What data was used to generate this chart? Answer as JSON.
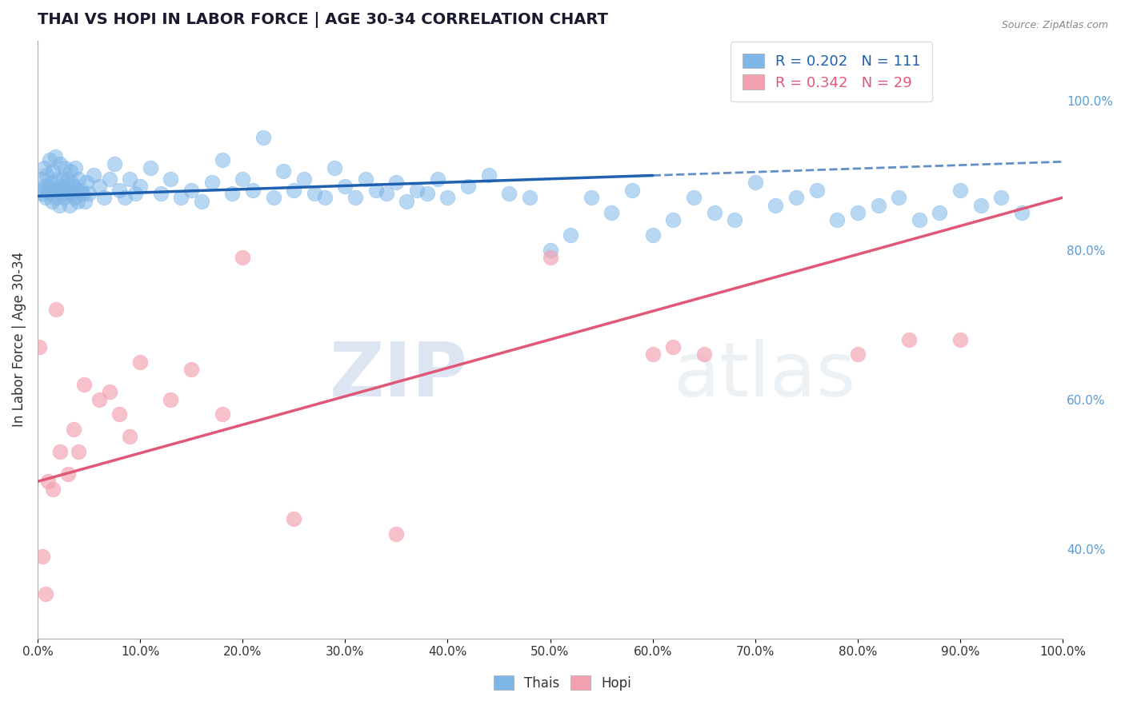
{
  "title": "THAI VS HOPI IN LABOR FORCE | AGE 30-34 CORRELATION CHART",
  "source_text": "Source: ZipAtlas.com",
  "ylabel": "In Labor Force | Age 30-34",
  "xlim": [
    0.0,
    1.0
  ],
  "ylim": [
    0.28,
    1.08
  ],
  "thai_R": 0.202,
  "thai_N": 111,
  "hopi_R": 0.342,
  "hopi_N": 29,
  "thai_color": "#7eb6e8",
  "hopi_color": "#f4a0b0",
  "thai_line_color": "#2060b0",
  "hopi_line_color": "#e05878",
  "background_color": "#ffffff",
  "watermark_zip": "ZIP",
  "watermark_atlas": "atlas",
  "xtick_labels": [
    "0.0%",
    "10.0%",
    "20.0%",
    "30.0%",
    "40.0%",
    "50.0%",
    "60.0%",
    "70.0%",
    "80.0%",
    "90.0%",
    "100.0%"
  ],
  "ytick_labels_right": [
    "40.0%",
    "60.0%",
    "80.0%",
    "100.0%"
  ],
  "ytick_values_right": [
    0.4,
    0.6,
    0.8,
    1.0
  ],
  "thai_scatter_x": [
    0.003,
    0.004,
    0.005,
    0.006,
    0.007,
    0.008,
    0.009,
    0.01,
    0.011,
    0.012,
    0.013,
    0.014,
    0.015,
    0.016,
    0.017,
    0.018,
    0.019,
    0.02,
    0.021,
    0.022,
    0.023,
    0.024,
    0.025,
    0.026,
    0.027,
    0.028,
    0.029,
    0.03,
    0.031,
    0.032,
    0.033,
    0.034,
    0.035,
    0.036,
    0.037,
    0.038,
    0.039,
    0.04,
    0.042,
    0.044,
    0.046,
    0.048,
    0.05,
    0.055,
    0.06,
    0.065,
    0.07,
    0.075,
    0.08,
    0.085,
    0.09,
    0.095,
    0.1,
    0.11,
    0.12,
    0.13,
    0.14,
    0.15,
    0.16,
    0.17,
    0.18,
    0.19,
    0.2,
    0.21,
    0.22,
    0.23,
    0.24,
    0.25,
    0.26,
    0.27,
    0.28,
    0.29,
    0.3,
    0.31,
    0.32,
    0.33,
    0.34,
    0.35,
    0.36,
    0.37,
    0.38,
    0.39,
    0.4,
    0.42,
    0.44,
    0.46,
    0.48,
    0.5,
    0.52,
    0.54,
    0.56,
    0.58,
    0.6,
    0.62,
    0.64,
    0.66,
    0.68,
    0.7,
    0.72,
    0.74,
    0.76,
    0.78,
    0.8,
    0.82,
    0.84,
    0.86,
    0.88,
    0.9,
    0.92,
    0.94,
    0.96
  ],
  "thai_scatter_y": [
    0.88,
    0.895,
    0.875,
    0.91,
    0.885,
    0.87,
    0.9,
    0.885,
    0.875,
    0.92,
    0.89,
    0.865,
    0.905,
    0.88,
    0.925,
    0.87,
    0.895,
    0.88,
    0.86,
    0.915,
    0.875,
    0.895,
    0.885,
    0.87,
    0.91,
    0.88,
    0.895,
    0.875,
    0.86,
    0.905,
    0.89,
    0.875,
    0.885,
    0.87,
    0.91,
    0.88,
    0.865,
    0.895,
    0.88,
    0.875,
    0.865,
    0.89,
    0.875,
    0.9,
    0.885,
    0.87,
    0.895,
    0.915,
    0.88,
    0.87,
    0.895,
    0.875,
    0.885,
    0.91,
    0.875,
    0.895,
    0.87,
    0.88,
    0.865,
    0.89,
    0.92,
    0.875,
    0.895,
    0.88,
    0.95,
    0.87,
    0.905,
    0.88,
    0.895,
    0.875,
    0.87,
    0.91,
    0.885,
    0.87,
    0.895,
    0.88,
    0.875,
    0.89,
    0.865,
    0.88,
    0.875,
    0.895,
    0.87,
    0.885,
    0.9,
    0.875,
    0.87,
    0.8,
    0.82,
    0.87,
    0.85,
    0.88,
    0.82,
    0.84,
    0.87,
    0.85,
    0.84,
    0.89,
    0.86,
    0.87,
    0.88,
    0.84,
    0.85,
    0.86,
    0.87,
    0.84,
    0.85,
    0.88,
    0.86,
    0.87,
    0.85
  ],
  "hopi_scatter_x": [
    0.002,
    0.005,
    0.008,
    0.01,
    0.015,
    0.018,
    0.022,
    0.03,
    0.035,
    0.04,
    0.045,
    0.06,
    0.07,
    0.08,
    0.09,
    0.1,
    0.13,
    0.15,
    0.18,
    0.2,
    0.25,
    0.35,
    0.5,
    0.6,
    0.62,
    0.65,
    0.8,
    0.85,
    0.9
  ],
  "hopi_scatter_y": [
    0.67,
    0.39,
    0.34,
    0.49,
    0.48,
    0.72,
    0.53,
    0.5,
    0.56,
    0.53,
    0.62,
    0.6,
    0.61,
    0.58,
    0.55,
    0.65,
    0.6,
    0.64,
    0.58,
    0.79,
    0.44,
    0.42,
    0.79,
    0.66,
    0.67,
    0.66,
    0.66,
    0.68,
    0.68
  ],
  "thai_trend_y_start": 0.872,
  "thai_trend_y_end": 0.918,
  "hopi_trend_y_start": 0.49,
  "hopi_trend_y_end": 0.87,
  "dashed_line_y_start": 0.918,
  "dashed_line_y_end": 0.94,
  "dashed_line_x_start": 0.6,
  "dashed_line_x_end": 1.0
}
